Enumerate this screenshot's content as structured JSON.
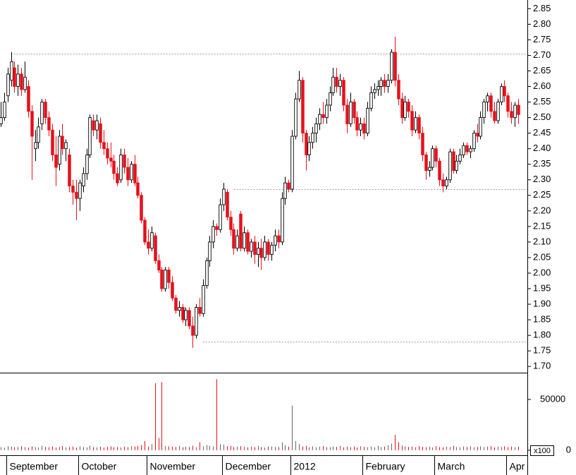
{
  "chart_data": {
    "type": "candlestick",
    "categories": [
      null,
      null,
      "September",
      null,
      null,
      null,
      null,
      null,
      null,
      null,
      null,
      null,
      null,
      null,
      null,
      null,
      null,
      null,
      null,
      null,
      null,
      null,
      null,
      "October",
      null,
      null,
      null,
      null,
      null,
      null,
      null,
      null,
      null,
      null,
      null,
      null,
      null,
      null,
      null,
      null,
      null,
      null,
      null,
      "November",
      null,
      null,
      null,
      null,
      null,
      null,
      null,
      null,
      null,
      null,
      null,
      null,
      null,
      null,
      null,
      null,
      null,
      null,
      null,
      null,
      null,
      "December",
      null,
      null,
      null,
      null,
      null,
      null,
      null,
      null,
      null,
      null,
      null,
      null,
      null,
      null,
      null,
      null,
      null,
      null,
      null,
      "2012",
      null,
      null,
      null,
      null,
      null,
      null,
      null,
      null,
      null,
      null,
      null,
      null,
      null,
      null,
      null,
      null,
      null,
      null,
      null,
      null,
      "February",
      null,
      null,
      null,
      null,
      null,
      null,
      null,
      null,
      null,
      null,
      null,
      null,
      null,
      null,
      null,
      null,
      null,
      null,
      null,
      null,
      "March",
      null,
      null,
      null,
      null,
      null,
      null,
      null,
      null,
      null,
      null,
      null,
      null,
      null,
      null,
      null,
      null,
      null,
      null,
      null,
      null,
      "Apr",
      null,
      null,
      null
    ],
    "ohlc": [
      [
        2.48,
        2.55,
        2.47,
        2.5
      ],
      [
        2.5,
        2.58,
        2.49,
        2.55
      ],
      [
        2.57,
        2.66,
        2.55,
        2.64
      ],
      [
        2.62,
        2.71,
        2.6,
        2.68
      ],
      [
        2.66,
        2.68,
        2.58,
        2.6
      ],
      [
        2.6,
        2.67,
        2.57,
        2.64
      ],
      [
        2.64,
        2.66,
        2.57,
        2.59
      ],
      [
        2.59,
        2.68,
        2.58,
        2.63
      ],
      [
        2.6,
        2.62,
        2.5,
        2.52
      ],
      [
        2.52,
        2.54,
        2.3,
        2.44
      ],
      [
        2.4,
        2.46,
        2.36,
        2.42
      ],
      [
        2.42,
        2.5,
        2.4,
        2.47
      ],
      [
        2.48,
        2.56,
        2.46,
        2.55
      ],
      [
        2.55,
        2.56,
        2.48,
        2.5
      ],
      [
        2.5,
        2.52,
        2.44,
        2.46
      ],
      [
        2.46,
        2.48,
        2.36,
        2.38
      ],
      [
        2.38,
        2.44,
        2.28,
        2.34
      ],
      [
        2.35,
        2.46,
        2.33,
        2.44
      ],
      [
        2.44,
        2.48,
        2.38,
        2.4
      ],
      [
        2.4,
        2.43,
        2.36,
        2.42
      ],
      [
        2.38,
        2.4,
        2.26,
        2.28
      ],
      [
        2.28,
        2.3,
        2.22,
        2.26
      ],
      [
        2.26,
        2.3,
        2.17,
        2.24
      ],
      [
        2.24,
        2.3,
        2.2,
        2.29
      ],
      [
        2.28,
        2.34,
        2.26,
        2.32
      ],
      [
        2.32,
        2.4,
        2.3,
        2.38
      ],
      [
        2.38,
        2.51,
        2.37,
        2.5
      ],
      [
        2.49,
        2.51,
        2.44,
        2.46
      ],
      [
        2.46,
        2.51,
        2.43,
        2.49
      ],
      [
        2.48,
        2.5,
        2.4,
        2.42
      ],
      [
        2.42,
        2.46,
        2.38,
        2.4
      ],
      [
        2.4,
        2.42,
        2.35,
        2.37
      ],
      [
        2.37,
        2.42,
        2.34,
        2.36
      ],
      [
        2.36,
        2.38,
        2.3,
        2.32
      ],
      [
        2.32,
        2.34,
        2.28,
        2.29
      ],
      [
        2.3,
        2.4,
        2.29,
        2.38
      ],
      [
        2.38,
        2.4,
        2.32,
        2.34
      ],
      [
        2.34,
        2.37,
        2.28,
        2.3
      ],
      [
        2.3,
        2.36,
        2.29,
        2.35
      ],
      [
        2.35,
        2.38,
        2.28,
        2.29
      ],
      [
        2.29,
        2.31,
        2.24,
        2.25
      ],
      [
        2.25,
        2.26,
        2.16,
        2.17
      ],
      [
        2.17,
        2.18,
        2.09,
        2.1
      ],
      [
        2.1,
        2.14,
        2.06,
        2.08
      ],
      [
        2.08,
        2.15,
        2.07,
        2.13
      ],
      [
        2.12,
        2.13,
        2.03,
        2.04
      ],
      [
        2.04,
        2.06,
        2.0,
        2.01
      ],
      [
        2.01,
        2.02,
        1.94,
        1.95
      ],
      [
        1.95,
        2.02,
        1.94,
        2.01
      ],
      [
        2.01,
        2.02,
        1.95,
        1.97
      ],
      [
        1.97,
        1.99,
        1.91,
        1.92
      ],
      [
        1.92,
        1.93,
        1.87,
        1.88
      ],
      [
        1.88,
        1.91,
        1.86,
        1.89
      ],
      [
        1.89,
        1.9,
        1.84,
        1.85
      ],
      [
        1.85,
        1.89,
        1.83,
        1.88
      ],
      [
        1.88,
        1.89,
        1.82,
        1.83
      ],
      [
        1.83,
        1.86,
        1.76,
        1.8
      ],
      [
        1.8,
        1.9,
        1.79,
        1.89
      ],
      [
        1.89,
        1.92,
        1.86,
        1.87
      ],
      [
        1.87,
        1.98,
        1.86,
        1.96
      ],
      [
        1.96,
        2.05,
        1.95,
        2.04
      ],
      [
        2.04,
        2.12,
        2.02,
        2.1
      ],
      [
        2.1,
        2.17,
        2.08,
        2.15
      ],
      [
        2.15,
        2.16,
        2.12,
        2.14
      ],
      [
        2.14,
        2.24,
        2.13,
        2.22
      ],
      [
        2.22,
        2.29,
        2.2,
        2.27
      ],
      [
        2.26,
        2.27,
        2.17,
        2.18
      ],
      [
        2.18,
        2.2,
        2.12,
        2.14
      ],
      [
        2.14,
        2.16,
        2.06,
        2.08
      ],
      [
        2.08,
        2.14,
        2.07,
        2.12
      ],
      [
        2.19,
        2.2,
        2.07,
        2.08
      ],
      [
        2.08,
        2.15,
        2.07,
        2.13
      ],
      [
        2.13,
        2.14,
        2.06,
        2.07
      ],
      [
        2.07,
        2.11,
        2.05,
        2.1
      ],
      [
        2.1,
        2.12,
        2.03,
        2.06
      ],
      [
        2.06,
        2.1,
        2.02,
        2.08
      ],
      [
        2.08,
        2.11,
        2.01,
        2.05
      ],
      [
        2.05,
        2.12,
        2.04,
        2.1
      ],
      [
        2.1,
        2.11,
        2.04,
        2.06
      ],
      [
        2.06,
        2.1,
        2.04,
        2.09
      ],
      [
        2.09,
        2.14,
        2.07,
        2.12
      ],
      [
        2.12,
        2.14,
        2.08,
        2.1
      ],
      [
        2.1,
        2.26,
        2.09,
        2.24
      ],
      [
        2.24,
        2.31,
        2.22,
        2.29
      ],
      [
        2.29,
        2.3,
        2.26,
        2.27
      ],
      [
        2.27,
        2.46,
        2.26,
        2.44
      ],
      [
        2.44,
        2.58,
        2.43,
        2.56
      ],
      [
        2.56,
        2.65,
        2.55,
        2.62
      ],
      [
        2.62,
        2.63,
        2.42,
        2.45
      ],
      [
        2.45,
        2.46,
        2.33,
        2.38
      ],
      [
        2.38,
        2.44,
        2.36,
        2.42
      ],
      [
        2.42,
        2.47,
        2.4,
        2.45
      ],
      [
        2.45,
        2.5,
        2.42,
        2.48
      ],
      [
        2.48,
        2.53,
        2.46,
        2.51
      ],
      [
        2.51,
        2.55,
        2.48,
        2.5
      ],
      [
        2.5,
        2.56,
        2.48,
        2.54
      ],
      [
        2.54,
        2.6,
        2.52,
        2.58
      ],
      [
        2.58,
        2.66,
        2.57,
        2.63
      ],
      [
        2.63,
        2.66,
        2.58,
        2.6
      ],
      [
        2.6,
        2.64,
        2.57,
        2.62
      ],
      [
        2.62,
        2.63,
        2.52,
        2.54
      ],
      [
        2.54,
        2.56,
        2.45,
        2.48
      ],
      [
        2.48,
        2.58,
        2.47,
        2.55
      ],
      [
        2.55,
        2.56,
        2.48,
        2.5
      ],
      [
        2.5,
        2.52,
        2.44,
        2.46
      ],
      [
        2.46,
        2.5,
        2.44,
        2.48
      ],
      [
        2.48,
        2.5,
        2.43,
        2.45
      ],
      [
        2.45,
        2.55,
        2.44,
        2.53
      ],
      [
        2.53,
        2.6,
        2.52,
        2.58
      ],
      [
        2.58,
        2.61,
        2.56,
        2.59
      ],
      [
        2.59,
        2.62,
        2.57,
        2.6
      ],
      [
        2.6,
        2.63,
        2.57,
        2.62
      ],
      [
        2.62,
        2.64,
        2.58,
        2.6
      ],
      [
        2.6,
        2.64,
        2.58,
        2.62
      ],
      [
        2.62,
        2.72,
        2.61,
        2.71
      ],
      [
        2.71,
        2.76,
        2.6,
        2.62
      ],
      [
        2.62,
        2.64,
        2.54,
        2.56
      ],
      [
        2.56,
        2.58,
        2.48,
        2.5
      ],
      [
        2.5,
        2.57,
        2.49,
        2.55
      ],
      [
        2.55,
        2.56,
        2.5,
        2.52
      ],
      [
        2.52,
        2.54,
        2.44,
        2.46
      ],
      [
        2.46,
        2.52,
        2.45,
        2.5
      ],
      [
        2.5,
        2.51,
        2.43,
        2.45
      ],
      [
        2.45,
        2.47,
        2.36,
        2.38
      ],
      [
        2.38,
        2.39,
        2.3,
        2.33
      ],
      [
        2.33,
        2.36,
        2.31,
        2.34
      ],
      [
        2.34,
        2.41,
        2.33,
        2.4
      ],
      [
        2.4,
        2.41,
        2.34,
        2.36
      ],
      [
        2.36,
        2.37,
        2.28,
        2.3
      ],
      [
        2.3,
        2.32,
        2.26,
        2.28
      ],
      [
        2.28,
        2.31,
        2.27,
        2.3
      ],
      [
        2.3,
        2.4,
        2.29,
        2.39
      ],
      [
        2.39,
        2.4,
        2.32,
        2.33
      ],
      [
        2.33,
        2.38,
        2.32,
        2.36
      ],
      [
        2.36,
        2.4,
        2.35,
        2.38
      ],
      [
        2.38,
        2.42,
        2.37,
        2.41
      ],
      [
        2.41,
        2.42,
        2.38,
        2.39
      ],
      [
        2.39,
        2.41,
        2.37,
        2.4
      ],
      [
        2.4,
        2.46,
        2.39,
        2.45
      ],
      [
        2.45,
        2.48,
        2.42,
        2.44
      ],
      [
        2.44,
        2.52,
        2.43,
        2.5
      ],
      [
        2.5,
        2.56,
        2.48,
        2.55
      ],
      [
        2.55,
        2.58,
        2.52,
        2.57
      ],
      [
        2.57,
        2.58,
        2.5,
        2.52
      ],
      [
        2.52,
        2.55,
        2.48,
        2.49
      ],
      [
        2.49,
        2.56,
        2.48,
        2.55
      ],
      [
        2.55,
        2.61,
        2.54,
        2.6
      ],
      [
        2.6,
        2.62,
        2.55,
        2.57
      ],
      [
        2.57,
        2.58,
        2.5,
        2.52
      ],
      [
        2.52,
        2.55,
        2.48,
        2.5
      ],
      [
        2.5,
        2.55,
        2.47,
        2.54
      ],
      [
        2.54,
        2.56,
        2.48,
        2.51
      ]
    ],
    "volume": [
      3000,
      2500,
      4000,
      3500,
      2800,
      3200,
      4000,
      3000,
      2600,
      3800,
      3000,
      2700,
      4200,
      3100,
      2900,
      3600,
      2500,
      3300,
      4100,
      2800,
      3000,
      3500,
      2600,
      3900,
      3100,
      2700,
      4300,
      3000,
      2800,
      3400,
      2600,
      3200,
      3800,
      2900,
      3100,
      2700,
      3500,
      3000,
      4000,
      3600,
      4200,
      5000,
      9000,
      3500,
      6000,
      66000,
      12000,
      67000,
      4000,
      3800,
      3500,
      3000,
      4200,
      2800,
      3600,
      3100,
      4500,
      3000,
      8000,
      3800,
      5000,
      4200,
      3600,
      70000,
      6000,
      5500,
      3800,
      4200,
      3000,
      3500,
      4000,
      3200,
      2800,
      3600,
      3000,
      4200,
      3100,
      2700,
      3500,
      3800,
      3200,
      3000,
      8000,
      5000,
      3500,
      44000,
      9000,
      6000,
      3500,
      4200,
      3000,
      3800,
      2800,
      3500,
      4000,
      3100,
      2900,
      3700,
      3200,
      4300,
      2800,
      3400,
      3000,
      3600,
      2700,
      3900,
      3200,
      3000,
      3500,
      2800,
      4100,
      3000,
      3600,
      5000,
      6500,
      15000,
      8000,
      4500,
      3800,
      3200,
      3500,
      2900,
      4000,
      3300,
      3000,
      3600,
      2700,
      3800,
      3100,
      2900,
      3500,
      3200,
      4200,
      3000,
      2800,
      3700,
      3100,
      4000,
      2900,
      3300,
      3800,
      3000,
      3500,
      4100,
      2700,
      3600,
      3200,
      3900,
      3000,
      3500,
      2800,
      3300
    ],
    "up_color": "#ffffff",
    "up_edge_color": "#000000",
    "down_color": "#e8101a",
    "ylim": [
      1.68,
      2.878
    ],
    "yticks": [
      {
        "value": 1.7,
        "label": "1.70"
      },
      1.75,
      {
        "value": 1.8,
        "label": "1.80"
      },
      1.85,
      {
        "value": 1.9,
        "label": "1.90"
      },
      1.95,
      {
        "value": 2.0,
        "label": "2.00"
      },
      2.05,
      {
        "value": 2.1,
        "label": "2.10"
      },
      2.15,
      {
        "value": 2.2,
        "label": "2.20"
      },
      2.25,
      {
        "value": 2.3,
        "label": "2.30"
      },
      2.35,
      {
        "value": 2.4,
        "label": "2.40"
      },
      2.45,
      {
        "value": 2.5,
        "label": "2.50"
      },
      2.55,
      {
        "value": 2.6,
        "label": "2.60"
      },
      2.65,
      {
        "value": 2.7,
        "label": "2.70"
      },
      2.75,
      {
        "value": 2.8,
        "label": "2.80"
      },
      2.85
    ],
    "y2lim": [
      -5000,
      75000
    ],
    "y2ticks": [
      0,
      50000
    ],
    "volume_unit_label": "x100",
    "reference_lines": [
      {
        "value": 2.705,
        "start": 3
      },
      {
        "value": 2.27,
        "start": 68
      },
      {
        "value": 1.78,
        "start": 59
      }
    ]
  }
}
